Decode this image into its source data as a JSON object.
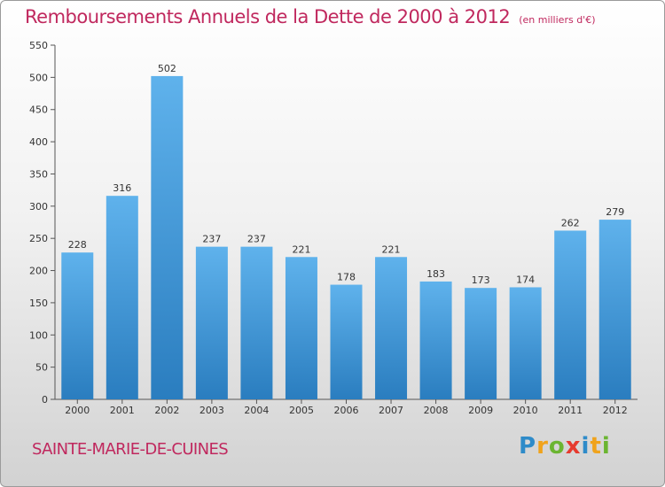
{
  "header": {
    "title": "Remboursements Annuels de la Dette de 2000 à 2012",
    "unit": "(en milliers d'€)"
  },
  "footer": {
    "commune": "SAINTE-MARIE-DE-CUINES",
    "logo": [
      "P",
      "r",
      "o",
      "x",
      "i",
      "t",
      "i"
    ],
    "logo_colors": [
      "#2e8bc9",
      "#f0a31c",
      "#6bb531",
      "#e63a2e",
      "#2e8bc9",
      "#f0a31c",
      "#6bb531"
    ]
  },
  "chart_data": {
    "type": "bar",
    "title": "Remboursements Annuels de la Dette de 2000 à 2012",
    "xlabel": "",
    "ylabel": "",
    "categories": [
      "2000",
      "2001",
      "2002",
      "2003",
      "2004",
      "2005",
      "2006",
      "2007",
      "2008",
      "2009",
      "2010",
      "2011",
      "2012"
    ],
    "values": [
      228,
      316,
      502,
      237,
      237,
      221,
      178,
      221,
      183,
      173,
      174,
      262,
      279
    ],
    "ylim": [
      0,
      550
    ],
    "yticks": [
      0,
      50,
      100,
      150,
      200,
      250,
      300,
      350,
      400,
      450,
      500,
      550
    ],
    "grid": false,
    "bar_color": "#3f96d8"
  }
}
